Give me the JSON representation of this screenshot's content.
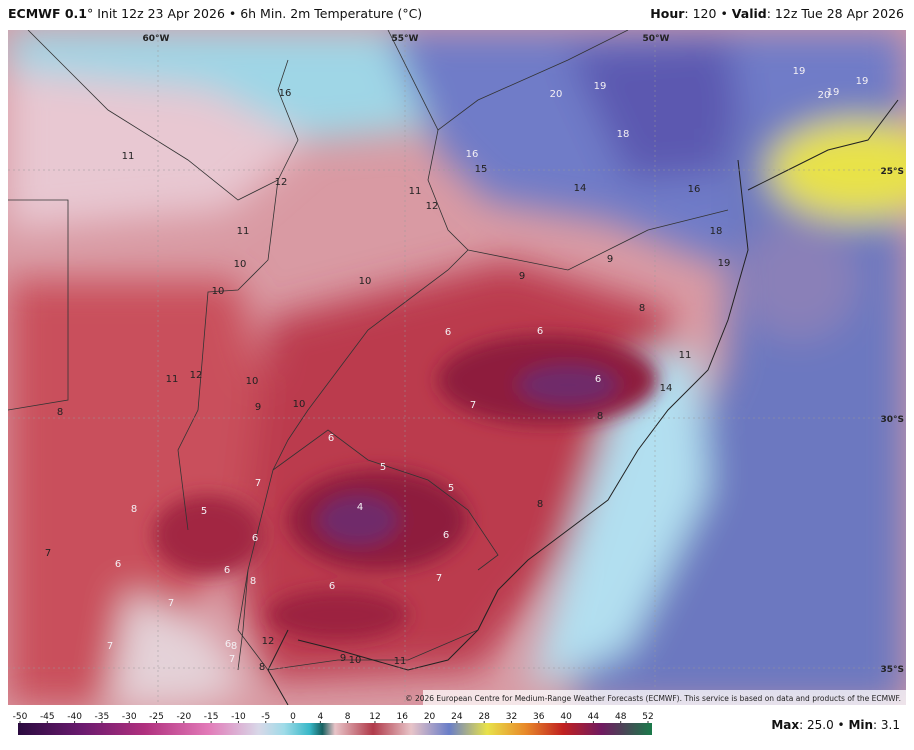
{
  "header": {
    "model": "ECMWF 0.1",
    "degree": "°",
    "init": " Init 12z 23 Apr 2026 • 6h Min. 2m Temperature (°C)",
    "hour_label": "Hour",
    "hour_value": ": 120 • ",
    "valid_label": "Valid",
    "valid_value": ": 12z Tue 28 Apr 2026"
  },
  "map": {
    "longitude_labels": [
      "60°W",
      "55°W",
      "50°W"
    ],
    "latitude_labels": [
      "25°S",
      "30°S",
      "35°S"
    ],
    "temperature_labels": [
      11,
      16,
      12,
      11,
      10,
      10,
      11,
      12,
      10,
      9,
      10,
      8,
      7,
      6,
      8,
      5,
      7,
      6,
      5,
      4,
      5,
      6,
      6,
      6,
      8,
      6,
      7,
      7,
      7,
      6,
      8,
      7,
      8,
      12,
      9,
      10,
      11,
      20,
      19,
      18,
      16,
      15,
      14,
      11,
      12,
      16,
      18,
      19,
      19,
      19,
      20,
      19,
      10,
      9,
      9,
      8,
      6,
      6,
      6,
      7,
      11,
      14,
      8,
      8
    ],
    "copyright": "© 2026 European Centre for Medium-Range Weather Forecasts (ECMWF). This service is based on data and products of the ECMWF."
  },
  "colorbar": {
    "ticks": [
      -50,
      -45,
      -40,
      -35,
      -30,
      -25,
      -20,
      -15,
      -10,
      -5,
      0,
      4,
      8,
      12,
      16,
      20,
      24,
      28,
      32,
      36,
      40,
      44,
      48,
      52
    ]
  },
  "footer": {
    "max_label": "Max",
    "max_value": ": 25.0 • ",
    "min_label": "Min",
    "min_value": ": 3.1"
  }
}
